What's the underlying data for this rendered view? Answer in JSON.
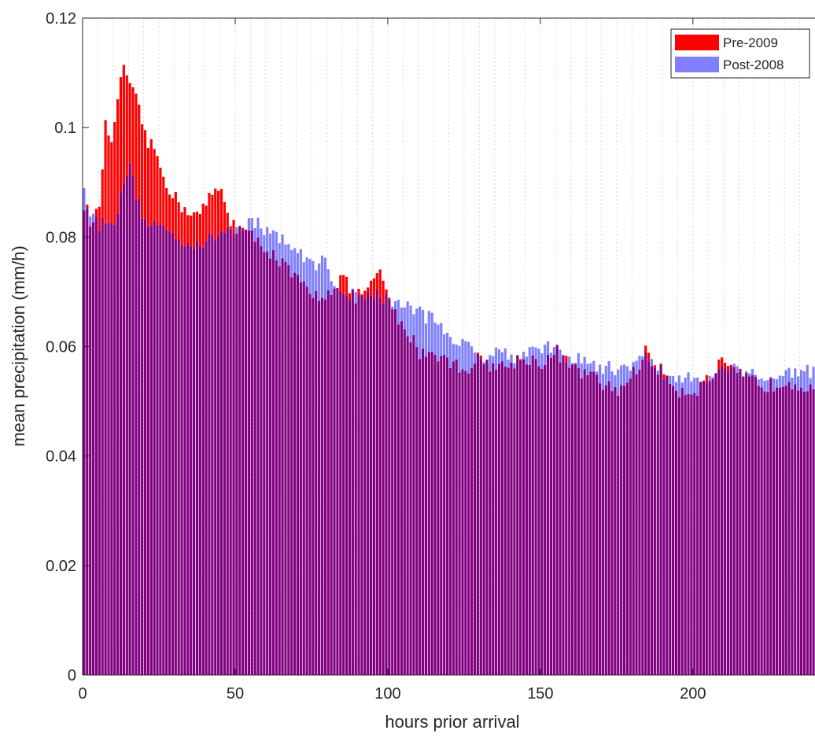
{
  "chart_data": {
    "type": "bar",
    "title": "",
    "xlabel": "hours prior arrival",
    "ylabel": "mean precipitation (mm/h)",
    "xlim": [
      0,
      240
    ],
    "ylim": [
      0,
      0.12
    ],
    "xticks": [
      "0",
      "50",
      "100",
      "150",
      "200"
    ],
    "yticks": [
      "0",
      "0.02",
      "0.04",
      "0.06",
      "0.08",
      "0.1",
      "0.12"
    ],
    "grid": "vertical dotted",
    "legend_position": "top-right",
    "colors": {
      "pre": "#ff0000",
      "post": "#8080ff",
      "overlap": "#800080"
    },
    "series": [
      {
        "name": "Pre-2009",
        "key": "pre"
      },
      {
        "name": "Post-2008",
        "key": "post"
      }
    ],
    "anchors": {
      "pre": [
        [
          0,
          0.086
        ],
        [
          3,
          0.082
        ],
        [
          5,
          0.086
        ],
        [
          6,
          0.093
        ],
        [
          7,
          0.1
        ],
        [
          9,
          0.098
        ],
        [
          10,
          0.1
        ],
        [
          12,
          0.108
        ],
        [
          13,
          0.112
        ],
        [
          15,
          0.107
        ],
        [
          17,
          0.105
        ],
        [
          19,
          0.101
        ],
        [
          21,
          0.097
        ],
        [
          23,
          0.096
        ],
        [
          25,
          0.093
        ],
        [
          27,
          0.09
        ],
        [
          29,
          0.088
        ],
        [
          31,
          0.086
        ],
        [
          34,
          0.085
        ],
        [
          37,
          0.084
        ],
        [
          39,
          0.085
        ],
        [
          41,
          0.087
        ],
        [
          44,
          0.089
        ],
        [
          46,
          0.087
        ],
        [
          48,
          0.083
        ],
        [
          50,
          0.082
        ],
        [
          55,
          0.08
        ],
        [
          60,
          0.078
        ],
        [
          65,
          0.075
        ],
        [
          70,
          0.072
        ],
        [
          75,
          0.069
        ],
        [
          80,
          0.07
        ],
        [
          85,
          0.073
        ],
        [
          88,
          0.069
        ],
        [
          92,
          0.07
        ],
        [
          97,
          0.073
        ],
        [
          100,
          0.069
        ],
        [
          103,
          0.064
        ],
        [
          107,
          0.062
        ],
        [
          110,
          0.059
        ],
        [
          115,
          0.059
        ],
        [
          120,
          0.057
        ],
        [
          125,
          0.056
        ],
        [
          130,
          0.058
        ],
        [
          135,
          0.056
        ],
        [
          140,
          0.057
        ],
        [
          145,
          0.058
        ],
        [
          150,
          0.057
        ],
        [
          155,
          0.059
        ],
        [
          160,
          0.056
        ],
        [
          165,
          0.055
        ],
        [
          170,
          0.053
        ],
        [
          175,
          0.052
        ],
        [
          180,
          0.055
        ],
        [
          184,
          0.059
        ],
        [
          188,
          0.056
        ],
        [
          192,
          0.054
        ],
        [
          195,
          0.052
        ],
        [
          200,
          0.052
        ],
        [
          205,
          0.054
        ],
        [
          209,
          0.057
        ],
        [
          213,
          0.055
        ],
        [
          218,
          0.054
        ],
        [
          222,
          0.053
        ],
        [
          226,
          0.053
        ],
        [
          230,
          0.054
        ],
        [
          235,
          0.053
        ],
        [
          239,
          0.053
        ]
      ],
      "post": [
        [
          0,
          0.088
        ],
        [
          2,
          0.085
        ],
        [
          5,
          0.082
        ],
        [
          8,
          0.084
        ],
        [
          10,
          0.083
        ],
        [
          12,
          0.087
        ],
        [
          14,
          0.092
        ],
        [
          15,
          0.094
        ],
        [
          16,
          0.09
        ],
        [
          18,
          0.086
        ],
        [
          20,
          0.083
        ],
        [
          25,
          0.082
        ],
        [
          30,
          0.08
        ],
        [
          35,
          0.079
        ],
        [
          40,
          0.079
        ],
        [
          45,
          0.081
        ],
        [
          50,
          0.082
        ],
        [
          55,
          0.083
        ],
        [
          60,
          0.081
        ],
        [
          65,
          0.08
        ],
        [
          70,
          0.077
        ],
        [
          75,
          0.075
        ],
        [
          78,
          0.076
        ],
        [
          82,
          0.072
        ],
        [
          85,
          0.07
        ],
        [
          90,
          0.069
        ],
        [
          95,
          0.07
        ],
        [
          100,
          0.068
        ],
        [
          105,
          0.068
        ],
        [
          110,
          0.066
        ],
        [
          115,
          0.065
        ],
        [
          120,
          0.062
        ],
        [
          125,
          0.06
        ],
        [
          130,
          0.058
        ],
        [
          135,
          0.06
        ],
        [
          140,
          0.058
        ],
        [
          145,
          0.059
        ],
        [
          150,
          0.06
        ],
        [
          155,
          0.059
        ],
        [
          160,
          0.058
        ],
        [
          165,
          0.057
        ],
        [
          170,
          0.056
        ],
        [
          175,
          0.056
        ],
        [
          180,
          0.057
        ],
        [
          185,
          0.058
        ],
        [
          190,
          0.055
        ],
        [
          195,
          0.054
        ],
        [
          200,
          0.054
        ],
        [
          205,
          0.055
        ],
        [
          210,
          0.056
        ],
        [
          215,
          0.056
        ],
        [
          220,
          0.055
        ],
        [
          225,
          0.054
        ],
        [
          230,
          0.055
        ],
        [
          235,
          0.056
        ],
        [
          239,
          0.055
        ]
      ]
    }
  }
}
